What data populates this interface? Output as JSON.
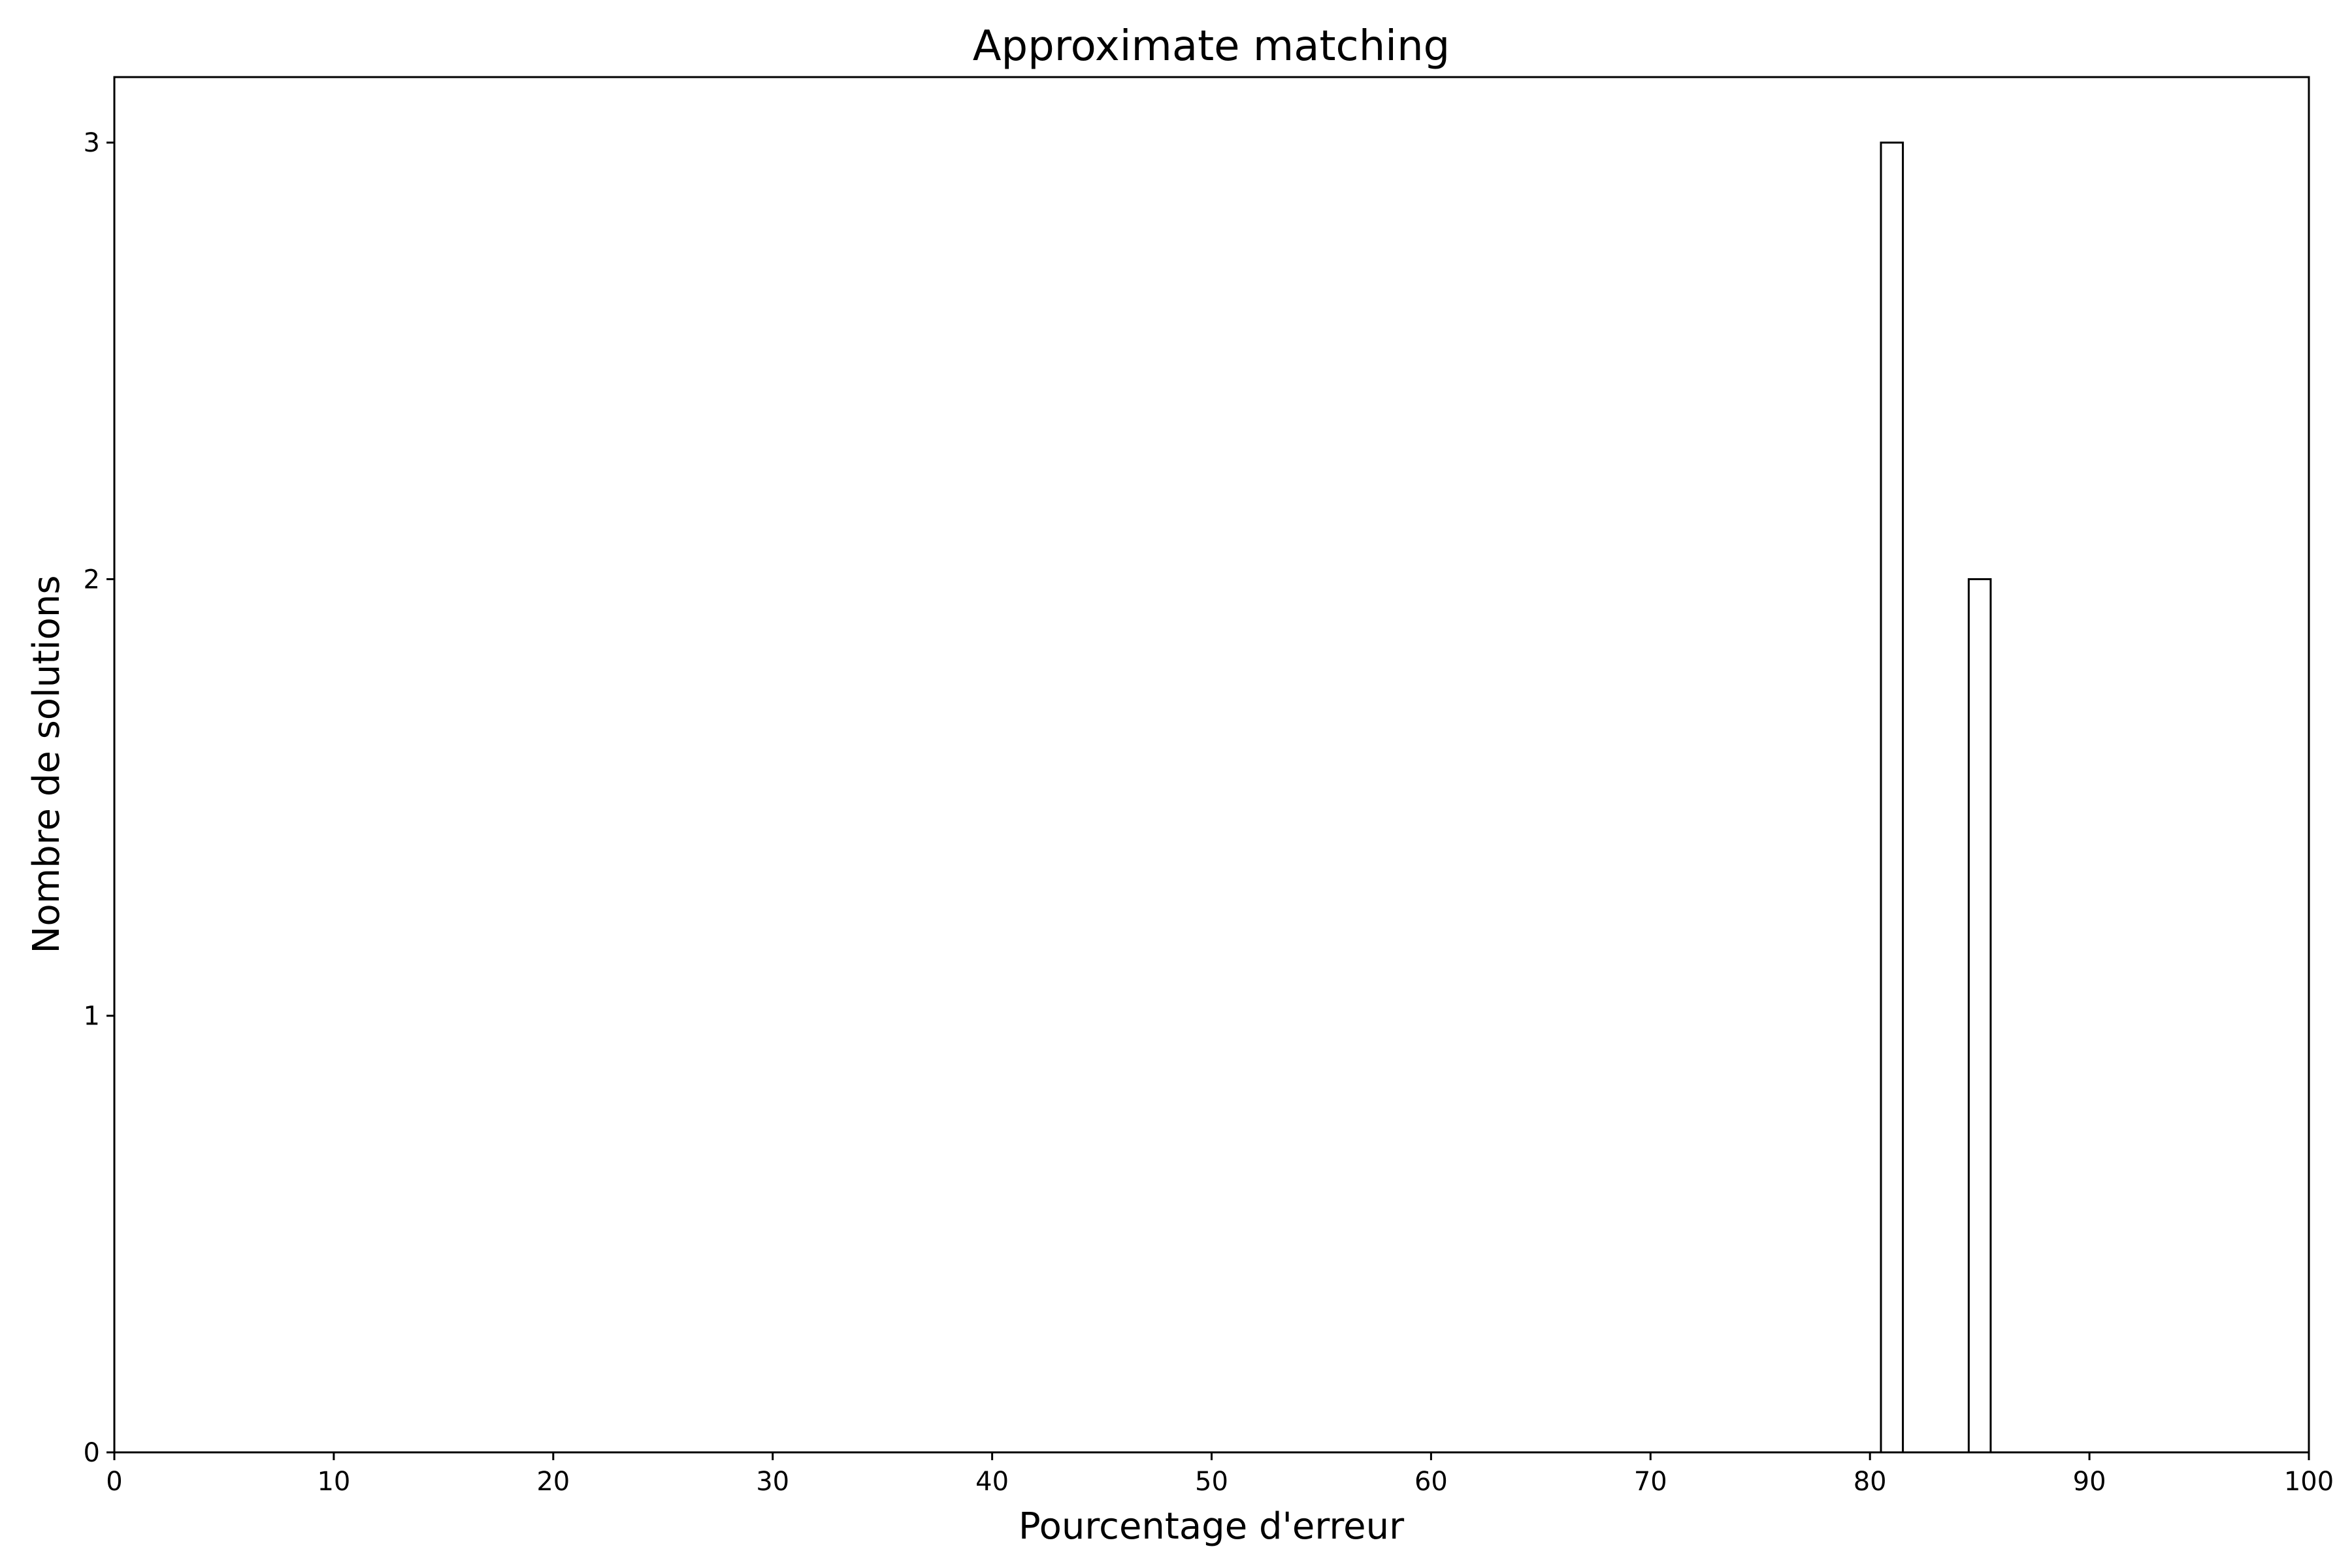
{
  "chart_data": {
    "type": "bar",
    "title": "Approximate matching",
    "xlabel": "Pourcentage d'erreur",
    "ylabel": "Nombre de solutions",
    "xlim": [
      0,
      100
    ],
    "ylim": [
      0,
      3.15
    ],
    "xticks": [
      "0",
      "10",
      "20",
      "30",
      "40",
      "50",
      "60",
      "70",
      "80",
      "90",
      "100"
    ],
    "yticks": [
      "0",
      "1",
      "2",
      "3"
    ],
    "bars": [
      {
        "x_start": 80.5,
        "x_end": 81.5,
        "value": 3
      },
      {
        "x_start": 84.5,
        "x_end": 85.5,
        "value": 2
      }
    ],
    "grid": false,
    "bar_fill": "#ffffff",
    "bar_edge": "#000000"
  }
}
